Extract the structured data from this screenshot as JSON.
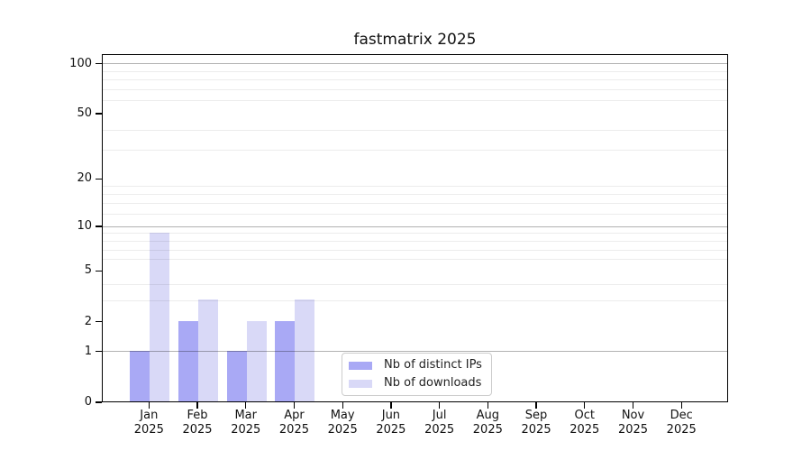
{
  "chart_data": {
    "type": "bar",
    "title": "fastmatrix 2025",
    "categories": [
      "Jan 2025",
      "Feb 2025",
      "Mar 2025",
      "Apr 2025",
      "May 2025",
      "Jun 2025",
      "Jul 2025",
      "Aug 2025",
      "Sep 2025",
      "Oct 2025",
      "Nov 2025",
      "Dec 2025"
    ],
    "series": [
      {
        "name": "Nb of distinct IPs",
        "color": "#a9a9f5",
        "values": [
          1,
          2,
          1,
          2,
          0,
          0,
          0,
          0,
          0,
          0,
          0,
          0
        ]
      },
      {
        "name": "Nb of downloads",
        "color": "#d9d9f7",
        "values": [
          9,
          3,
          2,
          3,
          0,
          0,
          0,
          0,
          0,
          0,
          0,
          0
        ]
      }
    ],
    "xlabel": "",
    "ylabel": "",
    "y_scale": "log10(1+value)",
    "ylim": [
      0,
      113
    ],
    "y_ticks": [
      0,
      1,
      2,
      5,
      10,
      20,
      50,
      100
    ],
    "y_gridlines": {
      "major": [
        1,
        10,
        100
      ],
      "minor": [
        3,
        4,
        6,
        7,
        8,
        9,
        12,
        14,
        16,
        18,
        30,
        40,
        60,
        70,
        80,
        90
      ]
    },
    "grid": "horizontal, major and minor",
    "legend": {
      "position": "inside bottom-center",
      "entries": [
        "Nb of distinct IPs",
        "Nb of downloads"
      ]
    }
  }
}
